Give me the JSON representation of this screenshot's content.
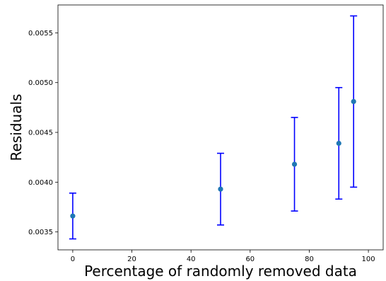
{
  "chart_data": {
    "type": "scatter",
    "title": "",
    "xlabel": "Percentage of randomly removed data",
    "ylabel": "Residuals",
    "xlim": [
      -5,
      105
    ],
    "ylim": [
      0.00332,
      0.00578
    ],
    "x_ticks": [
      0,
      20,
      40,
      60,
      80,
      100
    ],
    "x_tick_labels": [
      "0",
      "20",
      "40",
      "60",
      "80",
      "100"
    ],
    "y_ticks": [
      0.0035,
      0.004,
      0.0045,
      0.005,
      0.0055
    ],
    "y_tick_labels": [
      "0.0035",
      "0.0040",
      "0.0045",
      "0.0050",
      "0.0055"
    ],
    "grid": false,
    "legend": "none",
    "series": [
      {
        "x": [
          0,
          50,
          75,
          90,
          95
        ],
        "y": [
          0.00366,
          0.00393,
          0.00418,
          0.00439,
          0.00481
        ],
        "yerr_low": [
          0.00343,
          0.00357,
          0.00371,
          0.00383,
          0.00395
        ],
        "yerr_high": [
          0.00389,
          0.00429,
          0.00465,
          0.00495,
          0.00567
        ],
        "marker_color": "#1f77b4",
        "errorbar_color": "#0000ff"
      }
    ]
  }
}
